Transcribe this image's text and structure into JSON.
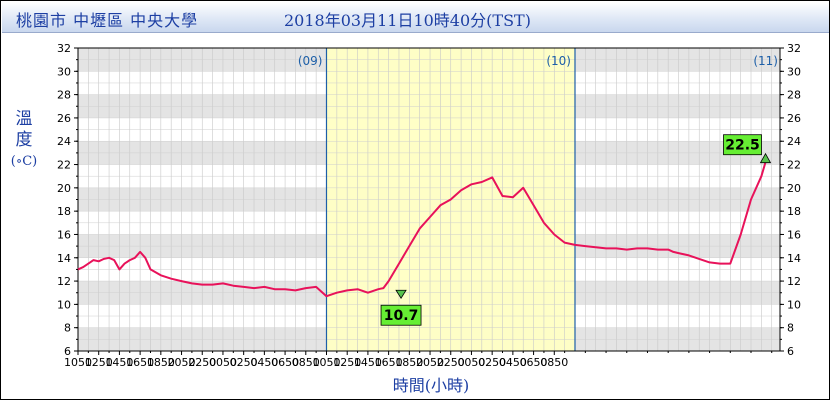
{
  "header": {
    "location": "桃園市 中壢區 中央大學",
    "timestamp": "2018年03月11日10時40分(TST)"
  },
  "axis": {
    "ylabel_lines": [
      "溫",
      "度"
    ],
    "yunit": "(∘C)",
    "xlabel": "時間(小時)"
  },
  "chart_data": {
    "type": "line",
    "title": "",
    "xlabel": "時間(小時)",
    "ylabel": "溫度 (∘C)",
    "ylim": [
      6,
      32
    ],
    "yticks": [
      6,
      8,
      10,
      12,
      14,
      16,
      18,
      20,
      22,
      24,
      26,
      28,
      30,
      32
    ],
    "xtick_labels": [
      "1050",
      "1250",
      "1450",
      "1650",
      "1850",
      "2050",
      "2250",
      "0050",
      "0250",
      "0450",
      "0650",
      "0850",
      "1050",
      "1250",
      "1450",
      "1650",
      "1850",
      "2050",
      "2250",
      "0050",
      "0250",
      "0450",
      "0650",
      "0850"
    ],
    "day_markers": [
      {
        "label": "(09)",
        "hour": 24
      },
      {
        "label": "(10)",
        "hour": 48
      }
    ],
    "day_marker_right": "(11)",
    "highlight_day": {
      "from_hour": 24,
      "to_hour": 48,
      "color": "#ffffc4"
    },
    "grid": true,
    "line_color": "#e8125a",
    "series": [
      {
        "values_hours_since_start": [
          0,
          0.5,
          1,
          1.5,
          2,
          2.5,
          3,
          3.5,
          4,
          4.5,
          5,
          5.5,
          6,
          6.5,
          7,
          8,
          9,
          10,
          11,
          12,
          13,
          14,
          15,
          16,
          17,
          18,
          19,
          20,
          21,
          22,
          23,
          24,
          25,
          26,
          27,
          28,
          29,
          29.5,
          30,
          31,
          32,
          33,
          34,
          35,
          36,
          37,
          38,
          39,
          40,
          41,
          42,
          43,
          44,
          45,
          46,
          47,
          48,
          49,
          50,
          51,
          52,
          53,
          54,
          55,
          56,
          57,
          57.5,
          58,
          59,
          60,
          61,
          62,
          63,
          64,
          65,
          66,
          66.5
        ],
        "temperature": [
          13.0,
          13.2,
          13.5,
          13.8,
          13.7,
          13.9,
          14.0,
          13.8,
          13.0,
          13.5,
          13.8,
          14.0,
          14.5,
          14.0,
          13.0,
          12.5,
          12.2,
          12.0,
          11.8,
          11.7,
          11.7,
          11.8,
          11.6,
          11.5,
          11.4,
          11.5,
          11.3,
          11.3,
          11.2,
          11.4,
          11.5,
          10.7,
          11.0,
          11.2,
          11.3,
          11.0,
          11.3,
          11.4,
          12.0,
          13.5,
          15.0,
          16.5,
          17.5,
          18.5,
          19.0,
          19.8,
          20.3,
          20.5,
          20.9,
          19.3,
          19.2,
          20.0,
          18.5,
          17.0,
          16.0,
          15.3,
          15.1,
          15.0,
          14.9,
          14.8,
          14.8,
          14.7,
          14.8,
          14.8,
          14.7,
          14.7,
          14.5,
          14.4,
          14.2,
          13.9,
          13.6,
          13.5,
          13.5,
          16.0,
          19.0,
          21.0,
          22.5
        ]
      }
    ],
    "annotations": [
      {
        "label": "10.7",
        "value": 10.7,
        "hour": 31.2,
        "kind": "min"
      },
      {
        "label": "22.5",
        "value": 22.5,
        "hour": 66.4,
        "kind": "max"
      }
    ]
  }
}
